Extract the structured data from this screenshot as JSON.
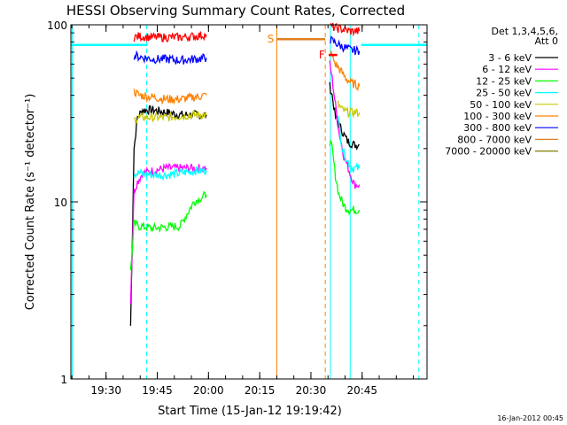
{
  "chart_data": {
    "type": "line",
    "title": "HESSI Observing Summary Count Rates, Corrected",
    "xlabel": "Start Time (15-Jan-12 19:19:42)",
    "ylabel": "Corrected Count Rate (s⁻¹ detector⁻¹)",
    "x_unit": "minutes after 19:19:42 UT",
    "xlim": [
      0,
      104.3
    ],
    "ylim": [
      1,
      100
    ],
    "y_scale": "log",
    "x_ticks": [
      {
        "x": 10.3,
        "label": "19:30"
      },
      {
        "x": 25.3,
        "label": "19:45"
      },
      {
        "x": 40.3,
        "label": "20:00"
      },
      {
        "x": 55.3,
        "label": "20:15"
      },
      {
        "x": 70.3,
        "label": "20:30"
      },
      {
        "x": 85.3,
        "label": "20:45"
      }
    ],
    "y_ticks": [
      {
        "y": 1,
        "label": "1"
      },
      {
        "y": 10,
        "label": "10"
      },
      {
        "y": 100,
        "label": "100"
      }
    ],
    "legend": {
      "header": [
        "Det 1,3,4,5,6,",
        "Att 0"
      ],
      "placement": "right"
    },
    "series": [
      {
        "name": "3 - 6 keV",
        "color": "#000000",
        "segments": [
          {
            "x": [
              17.5,
              18.5,
              19.5,
              21,
              24,
              28,
              32,
              36,
              39.7
            ],
            "y": [
              2,
              20,
              30,
              33,
              33,
              32,
              31,
              31,
              31
            ]
          },
          {
            "x": [
              75.8,
              76.5,
              77.5,
              79.5,
              81,
              83,
              84.5
            ],
            "y": [
              45,
              40,
              30,
              25,
              22,
              21,
              21
            ]
          }
        ]
      },
      {
        "name": "6 - 12 keV",
        "color": "#ff00ff",
        "segments": [
          {
            "x": [
              17.5,
              18.5,
              19.5,
              21,
              24,
              28,
              32,
              36,
              39.7
            ],
            "y": [
              2.8,
              11.5,
              13,
              14.5,
              15,
              15.5,
              15.5,
              15.5,
              15.5
            ]
          },
          {
            "x": [
              75.8,
              76.5,
              77.5,
              78.5,
              80,
              81.5,
              83,
              84.5
            ],
            "y": [
              60,
              50,
              35,
              25,
              18,
              15,
              12.5,
              12.5
            ]
          }
        ]
      },
      {
        "name": "12 - 25 keV",
        "color": "#00ff00",
        "segments": [
          {
            "x": [
              17.5,
              18.5,
              20,
              24,
              28,
              32,
              36,
              39.7
            ],
            "y": [
              4,
              7.5,
              7.3,
              7.1,
              7.2,
              7.3,
              10,
              11
            ]
          },
          {
            "x": [
              75.8,
              76.5,
              77.5,
              78.5,
              80,
              81.5,
              83,
              84.5
            ],
            "y": [
              22,
              20,
              14,
              11,
              9.5,
              9,
              9,
              9
            ]
          }
        ]
      },
      {
        "name": "25 - 50 keV",
        "color": "#00ffff",
        "segments": [
          {
            "x": [
              0,
              22.5
            ],
            "y": [
              77,
              77
            ]
          },
          {
            "x": [
              18.5,
              20,
              24,
              28,
              32,
              36,
              39.7
            ],
            "y": [
              14.5,
              14.5,
              14.2,
              14.2,
              14.5,
              15,
              15
            ]
          },
          {
            "x": [
              78,
              79.5,
              81,
              82.5,
              84.5
            ],
            "y": [
              32,
              20,
              17,
              15.5,
              15.5
            ]
          },
          {
            "x": [
              85,
              104.3
            ],
            "y": [
              77,
              77
            ]
          }
        ]
      },
      {
        "name": "50 - 100 keV",
        "color": "#c8c800",
        "segments": [
          {
            "x": [
              18.5,
              20,
              24,
              28,
              32,
              36,
              39.7
            ],
            "y": [
              29,
              30,
              30,
              30,
              30.5,
              31,
              31
            ]
          },
          {
            "x": [
              78,
              79.5,
              81,
              82.5,
              84.5
            ],
            "y": [
              36,
              33,
              32,
              32,
              32
            ]
          }
        ]
      },
      {
        "name": "100 - 300 keV",
        "color": "#ff8000",
        "segments": [
          {
            "x": [
              18.5,
              20,
              24,
              28,
              32,
              36,
              39.7
            ],
            "y": [
              42,
              40,
              39,
              38,
              38,
              39,
              40
            ]
          },
          {
            "x": [
              76,
              77.5,
              79,
              80.5,
              82,
              84.5
            ],
            "y": [
              70,
              60,
              55,
              50,
              47,
              45
            ]
          }
        ]
      },
      {
        "name": "300 - 800 keV",
        "color": "#0000ff",
        "segments": [
          {
            "x": [
              18.5,
              20,
              24,
              28,
              32,
              36,
              39.7
            ],
            "y": [
              67,
              66,
              64,
              64,
              63,
              64,
              65
            ]
          },
          {
            "x": [
              76,
              77.5,
              79,
              80.5,
              82,
              84.5
            ],
            "y": [
              82,
              79,
              76,
              74,
              72,
              71
            ]
          }
        ]
      },
      {
        "name": "800 - 7000 keV",
        "color": "#e08020",
        "segments": [
          {
            "x": [
              60.3,
              74.5
            ],
            "y": [
              83,
              83
            ]
          }
        ]
      },
      {
        "name": "7000 - 20000 keV",
        "color": "#808000",
        "segments": []
      }
    ],
    "overlays": [
      {
        "name": "attenuator-red-trace",
        "color": "#ff0000",
        "x": [
          18.5,
          20,
          24,
          28,
          32,
          36,
          39.7
        ],
        "y": [
          85,
          86,
          85,
          85,
          85,
          86,
          88
        ]
      },
      {
        "name": "attenuator-red-trace-2",
        "color": "#ff0000",
        "x": [
          76,
          77.5,
          79,
          80.5,
          82,
          84.5
        ],
        "y": [
          98,
          96,
          95,
          93,
          92,
          92
        ]
      },
      {
        "name": "flag-f-bar",
        "color": "#ff0000",
        "x": [
          75.5,
          78
        ],
        "y": [
          67.5,
          67.5
        ]
      }
    ],
    "vlines": [
      {
        "x": 0.4,
        "color": "#00ffff",
        "style": "solid"
      },
      {
        "x": 22.2,
        "color": "#00ffff",
        "style": "dashed"
      },
      {
        "x": 60.3,
        "color": "#ff8000",
        "style": "solid"
      },
      {
        "x": 74.5,
        "color": "#ff8000",
        "style": "dashed"
      },
      {
        "x": 76,
        "color": "#00ffff",
        "style": "solid"
      },
      {
        "x": 81.8,
        "color": "#00ffff",
        "style": "solid"
      },
      {
        "x": 101.9,
        "color": "#00ffff",
        "style": "dashed"
      }
    ],
    "annotations": [
      {
        "text": "S",
        "x": 58.5,
        "y": 83,
        "color": "#ff8000"
      },
      {
        "text": "F",
        "x": 73.5,
        "y": 67.5,
        "color": "#ff0000"
      }
    ],
    "footer": "16-Jan-2012 00:45"
  }
}
